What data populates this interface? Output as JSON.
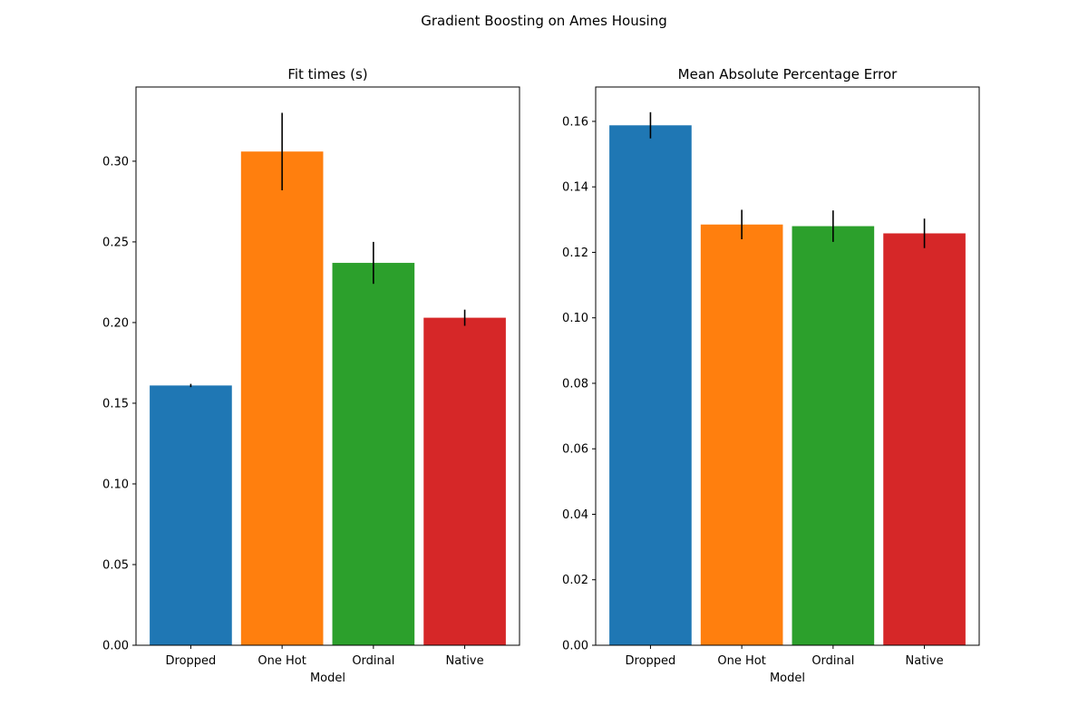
{
  "figure": {
    "suptitle": "Gradient Boosting on Ames Housing"
  },
  "chart_data": [
    {
      "type": "bar",
      "title": "Fit times (s)",
      "xlabel": "Model",
      "ylabel": "",
      "categories": [
        "Dropped",
        "One Hot",
        "Ordinal",
        "Native"
      ],
      "values": [
        0.161,
        0.306,
        0.237,
        0.203
      ],
      "errors": [
        0.001,
        0.024,
        0.013,
        0.005
      ],
      "colors": [
        "#1f77b4",
        "#ff7f0e",
        "#2ca02c",
        "#d62728"
      ],
      "ylim": [
        0,
        0.346
      ],
      "yticks": [
        0.0,
        0.05,
        0.1,
        0.15,
        0.2,
        0.25,
        0.3
      ],
      "ytick_labels": [
        "0.00",
        "0.05",
        "0.10",
        "0.15",
        "0.20",
        "0.25",
        "0.30"
      ],
      "grid": false
    },
    {
      "type": "bar",
      "title": "Mean Absolute Percentage Error",
      "xlabel": "Model",
      "ylabel": "",
      "categories": [
        "Dropped",
        "One Hot",
        "Ordinal",
        "Native"
      ],
      "values": [
        0.1588,
        0.1285,
        0.128,
        0.1258
      ],
      "errors": [
        0.004,
        0.0045,
        0.0048,
        0.0045
      ],
      "colors": [
        "#1f77b4",
        "#ff7f0e",
        "#2ca02c",
        "#d62728"
      ],
      "ylim": [
        0,
        0.1705
      ],
      "yticks": [
        0.0,
        0.02,
        0.04,
        0.06,
        0.08,
        0.1,
        0.12,
        0.14,
        0.16
      ],
      "ytick_labels": [
        "0.00",
        "0.02",
        "0.04",
        "0.06",
        "0.08",
        "0.10",
        "0.12",
        "0.14",
        "0.16"
      ],
      "grid": false
    }
  ]
}
